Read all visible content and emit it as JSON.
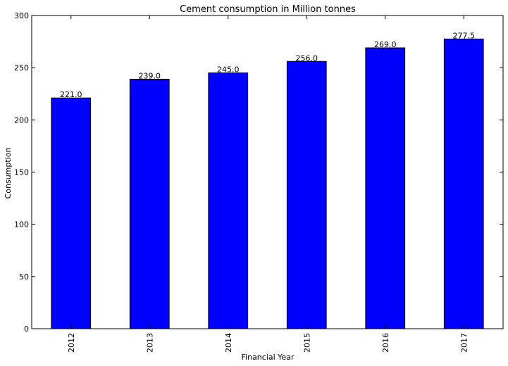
{
  "chart_data": {
    "type": "bar",
    "title": "Cement consumption in Million tonnes",
    "xlabel": "Financial Year",
    "ylabel": "Consumption",
    "categories": [
      "2012",
      "2013",
      "2014",
      "2015",
      "2016",
      "2017"
    ],
    "values": [
      221.0,
      239.0,
      245.0,
      256.0,
      269.0,
      277.5
    ],
    "data_labels": [
      "221.0",
      "239.0",
      "245.0",
      "256.0",
      "269.0",
      "277.5"
    ],
    "ylim": [
      0,
      300
    ],
    "yticks": [
      0,
      50,
      100,
      150,
      200,
      250,
      300
    ],
    "ytick_labels": [
      "0",
      "50",
      "100",
      "150",
      "200",
      "250",
      "300"
    ],
    "grid": false,
    "legend": "none",
    "bar_color": "#0000ff",
    "edge_color": "#000000"
  }
}
